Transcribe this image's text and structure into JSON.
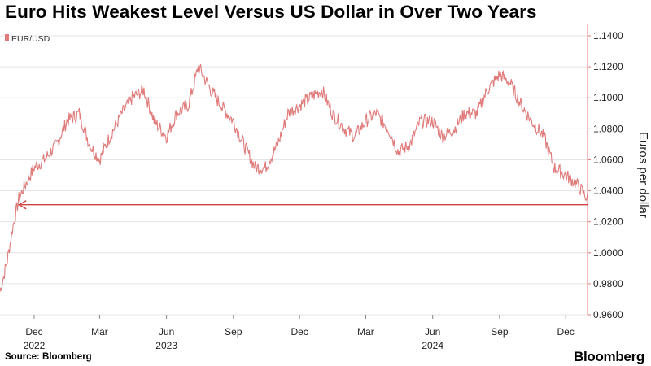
{
  "title": "Euro Hits Weakest Level Versus US Dollar in Over Two Years",
  "source": "Source: Bloomberg",
  "brand": "Bloomberg",
  "colors": {
    "series": "#e07b7b",
    "arrow": "#d0403f",
    "grid": "#e5e5e5",
    "axis": "#e07b7b"
  },
  "chart_data": {
    "type": "line",
    "title": "Euro Hits Weakest Level Versus US Dollar in Over Two Years",
    "ylabel": "Euros per dollar",
    "ylim": [
      0.96,
      1.14
    ],
    "y_ticks": [
      "1.1400",
      "1.1200",
      "1.1000",
      "1.0800",
      "1.0600",
      "1.0400",
      "1.0200",
      "1.0000",
      "0.9800",
      "0.9600"
    ],
    "y_tick_values": [
      1.14,
      1.12,
      1.1,
      1.08,
      1.06,
      1.04,
      1.02,
      1.0,
      0.98,
      0.96
    ],
    "x_range": [
      "2022-10-15",
      "2024-12-31"
    ],
    "x_ticks": [
      {
        "date": "2022-12-01",
        "label": "Dec",
        "year": "2022"
      },
      {
        "date": "2023-03-01",
        "label": "Mar",
        "year": ""
      },
      {
        "date": "2023-06-01",
        "label": "Jun",
        "year": "2023"
      },
      {
        "date": "2023-09-01",
        "label": "Sep",
        "year": ""
      },
      {
        "date": "2023-12-01",
        "label": "Dec",
        "year": ""
      },
      {
        "date": "2024-03-01",
        "label": "Mar",
        "year": ""
      },
      {
        "date": "2024-06-01",
        "label": "Jun",
        "year": "2024"
      },
      {
        "date": "2024-09-01",
        "label": "Sep",
        "year": ""
      },
      {
        "date": "2024-12-01",
        "label": "Dec",
        "year": ""
      }
    ],
    "grid": true,
    "legend_position": "top-left",
    "series": [
      {
        "name": "EUR/USD",
        "x": [
          "2022-10-15",
          "2022-10-25",
          "2022-11-01",
          "2022-11-10",
          "2022-11-20",
          "2022-12-01",
          "2022-12-15",
          "2023-01-01",
          "2023-01-15",
          "2023-02-01",
          "2023-02-15",
          "2023-03-01",
          "2023-03-15",
          "2023-04-01",
          "2023-04-15",
          "2023-05-01",
          "2023-05-15",
          "2023-06-01",
          "2023-06-15",
          "2023-07-01",
          "2023-07-15",
          "2023-08-01",
          "2023-08-15",
          "2023-09-01",
          "2023-09-15",
          "2023-10-01",
          "2023-10-15",
          "2023-11-01",
          "2023-11-15",
          "2023-12-01",
          "2023-12-15",
          "2024-01-01",
          "2024-01-15",
          "2024-02-01",
          "2024-02-15",
          "2024-03-01",
          "2024-03-15",
          "2024-04-01",
          "2024-04-15",
          "2024-05-01",
          "2024-05-15",
          "2024-06-01",
          "2024-06-15",
          "2024-07-01",
          "2024-07-15",
          "2024-08-01",
          "2024-08-15",
          "2024-09-01",
          "2024-09-15",
          "2024-10-01",
          "2024-10-15",
          "2024-11-01",
          "2024-11-15",
          "2024-12-01",
          "2024-12-15",
          "2024-12-31"
        ],
        "y": [
          0.975,
          0.995,
          1.015,
          1.035,
          1.045,
          1.055,
          1.06,
          1.07,
          1.085,
          1.09,
          1.07,
          1.06,
          1.075,
          1.09,
          1.1,
          1.105,
          1.085,
          1.075,
          1.09,
          1.095,
          1.12,
          1.105,
          1.095,
          1.085,
          1.07,
          1.055,
          1.055,
          1.07,
          1.09,
          1.095,
          1.1,
          1.105,
          1.09,
          1.08,
          1.075,
          1.085,
          1.09,
          1.08,
          1.065,
          1.07,
          1.085,
          1.085,
          1.075,
          1.08,
          1.09,
          1.09,
          1.105,
          1.115,
          1.11,
          1.095,
          1.085,
          1.075,
          1.055,
          1.05,
          1.045,
          1.035
        ]
      }
    ],
    "annotations": [
      {
        "type": "arrow",
        "label": "",
        "y": 1.031,
        "from": "2024-12-31",
        "to": "2022-11-10"
      }
    ]
  }
}
